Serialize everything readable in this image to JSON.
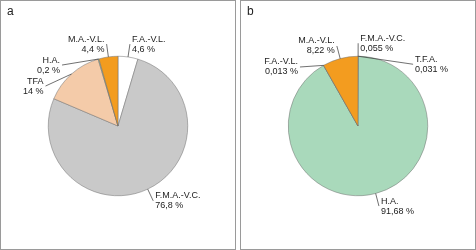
{
  "chart_data": [
    {
      "type": "pie",
      "title": "a",
      "categories": [
        "F.A.-V.L.",
        "F.M.A.-V.C.",
        "TFA",
        "H.A.",
        "M.A.-V.L."
      ],
      "values": [
        4.6,
        76.8,
        14,
        0.2,
        4.4
      ],
      "value_labels": [
        "4,6 %",
        "76,8 %",
        "14 %",
        "0,2 %",
        "4,4 %"
      ],
      "colors": [
        "#ffffff",
        "#c9c9c9",
        "#f4cba9",
        "#a9d9bb",
        "#f39c1f"
      ],
      "data_labels": true
    },
    {
      "type": "pie",
      "title": "b",
      "categories": [
        "F.M.A.-V.C.",
        "T.F.A.",
        "H.A.",
        "F.A.-V.L.",
        "M.A.-V.L."
      ],
      "values": [
        0.055,
        0.031,
        91.68,
        0.013,
        8.22
      ],
      "value_labels": [
        "0,055 %",
        "0,031 %",
        "91,68 %",
        "0,013 %",
        "8,22 %"
      ],
      "colors": [
        "#c9c9c9",
        "#f4cba9",
        "#a9d9bb",
        "#ffffff",
        "#f39c1f"
      ],
      "data_labels": true
    }
  ]
}
